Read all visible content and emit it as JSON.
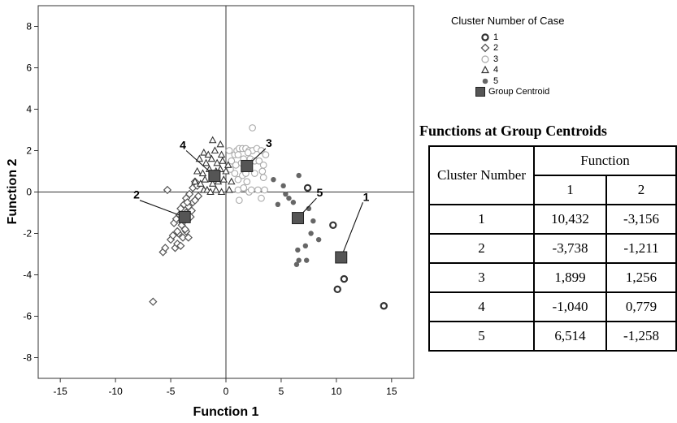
{
  "chart_data": {
    "type": "scatter",
    "xlabel": "Function 1",
    "ylabel": "Function 2",
    "xlim": [
      -17,
      17
    ],
    "ylim": [
      -9,
      9
    ],
    "x_ticks": [
      -15,
      -10,
      -5,
      0,
      5,
      10,
      15
    ],
    "y_ticks": [
      -8,
      -6,
      -4,
      -2,
      0,
      2,
      4,
      6,
      8
    ],
    "grid": false,
    "reference_lines": [
      {
        "axis": "x",
        "value": 0
      },
      {
        "axis": "y",
        "value": 0
      }
    ],
    "legend": {
      "title": "Cluster Number of Case",
      "placement": "top-right-outside",
      "entries": [
        {
          "label": "1",
          "marker": "circle-bold",
          "color": "#333333"
        },
        {
          "label": "2",
          "marker": "diamond",
          "color": "#555555"
        },
        {
          "label": "3",
          "marker": "circle-light",
          "color": "#aaaaaa"
        },
        {
          "label": "4",
          "marker": "triangle",
          "color": "#333333"
        },
        {
          "label": "5",
          "marker": "dot",
          "color": "#666666"
        },
        {
          "label": "Group Centroid",
          "marker": "square",
          "color": "#555555"
        }
      ]
    },
    "series": [
      {
        "name": "1",
        "points": [
          [
            9.7,
            -1.6
          ],
          [
            10.1,
            -4.7
          ],
          [
            10.7,
            -4.2
          ],
          [
            7.4,
            0.2
          ],
          [
            14.3,
            -5.5
          ]
        ]
      },
      {
        "name": "2",
        "points": [
          [
            -5.3,
            0.1
          ],
          [
            -6.6,
            -5.3
          ],
          [
            -5.7,
            -2.9
          ],
          [
            -5.5,
            -2.7
          ],
          [
            -5.0,
            -2.3
          ],
          [
            -4.8,
            -2.1
          ],
          [
            -4.6,
            -2.7
          ],
          [
            -4.4,
            -2.5
          ],
          [
            -4.3,
            -2.0
          ],
          [
            -4.1,
            -2.6
          ],
          [
            -3.9,
            -2.2
          ],
          [
            -3.6,
            -1.9
          ],
          [
            -3.4,
            -2.2
          ],
          [
            -4.7,
            -1.5
          ],
          [
            -4.5,
            -1.3
          ],
          [
            -4.2,
            -1.1
          ],
          [
            -4.0,
            -1.6
          ],
          [
            -3.8,
            -1.4
          ],
          [
            -3.6,
            -1.0
          ],
          [
            -3.4,
            -0.7
          ],
          [
            -3.2,
            -1.2
          ],
          [
            -3.0,
            -0.5
          ],
          [
            -2.8,
            -0.4
          ],
          [
            -3.8,
            -0.6
          ],
          [
            -3.6,
            -0.3
          ],
          [
            -3.3,
            -0.1
          ],
          [
            -3.0,
            0.2
          ],
          [
            -2.8,
            0.5
          ],
          [
            -2.6,
            0.3
          ],
          [
            -3.1,
            -0.9
          ],
          [
            -4.1,
            -0.8
          ],
          [
            -3.5,
            -0.5
          ],
          [
            -2.5,
            -0.2
          ],
          [
            -3.7,
            -1.8
          ],
          [
            -4.4,
            -1.9
          ]
        ]
      },
      {
        "name": "3",
        "points": [
          [
            2.4,
            3.1
          ],
          [
            0.3,
            2.0
          ],
          [
            0.8,
            1.8
          ],
          [
            1.0,
            2.0
          ],
          [
            1.2,
            2.1
          ],
          [
            1.5,
            2.1
          ],
          [
            1.8,
            2.1
          ],
          [
            2.1,
            2.0
          ],
          [
            2.4,
            2.0
          ],
          [
            2.8,
            2.1
          ],
          [
            3.2,
            2.0
          ],
          [
            3.6,
            1.8
          ],
          [
            0.5,
            1.5
          ],
          [
            0.9,
            1.3
          ],
          [
            1.4,
            1.4
          ],
          [
            1.6,
            1.6
          ],
          [
            2.2,
            1.6
          ],
          [
            2.6,
            1.5
          ],
          [
            3.0,
            1.5
          ],
          [
            3.4,
            1.3
          ],
          [
            0.8,
            0.9
          ],
          [
            1.1,
            0.6
          ],
          [
            1.5,
            0.8
          ],
          [
            1.9,
            0.5
          ],
          [
            2.6,
            0.9
          ],
          [
            3.3,
            1.0
          ],
          [
            3.4,
            0.7
          ],
          [
            1.1,
            0.1
          ],
          [
            1.6,
            0.2
          ],
          [
            2.1,
            0.0
          ],
          [
            2.3,
            0.1
          ],
          [
            2.9,
            0.1
          ],
          [
            3.5,
            0.1
          ],
          [
            1.2,
            -0.4
          ],
          [
            3.2,
            -0.3
          ],
          [
            1.8,
            0.9
          ],
          [
            0.4,
            1.1
          ],
          [
            1.1,
            1.8
          ],
          [
            2.0,
            1.9
          ]
        ]
      },
      {
        "name": "4",
        "points": [
          [
            -1.2,
            2.5
          ],
          [
            -0.5,
            2.3
          ],
          [
            -2.0,
            1.9
          ],
          [
            -1.6,
            1.8
          ],
          [
            -1.0,
            2.0
          ],
          [
            -0.4,
            1.8
          ],
          [
            -2.4,
            1.6
          ],
          [
            -1.8,
            1.4
          ],
          [
            -1.3,
            1.6
          ],
          [
            -0.8,
            1.4
          ],
          [
            -0.3,
            1.5
          ],
          [
            0.2,
            1.3
          ],
          [
            -2.6,
            1.0
          ],
          [
            -2.1,
            0.9
          ],
          [
            -1.5,
            1.1
          ],
          [
            -0.9,
            1.0
          ],
          [
            -0.5,
            1.1
          ],
          [
            0.0,
            1.0
          ],
          [
            -2.8,
            0.5
          ],
          [
            -2.3,
            0.4
          ],
          [
            -1.9,
            0.6
          ],
          [
            -1.2,
            0.4
          ],
          [
            -0.7,
            0.5
          ],
          [
            -0.2,
            0.6
          ],
          [
            -2.0,
            0.1
          ],
          [
            -1.7,
            0.1
          ],
          [
            -1.4,
            0.0
          ],
          [
            -0.9,
            0.1
          ],
          [
            -0.4,
            0.0
          ],
          [
            0.3,
            0.1
          ],
          [
            0.5,
            0.5
          ],
          [
            -1.1,
            0.8
          ]
        ]
      },
      {
        "name": "5",
        "points": [
          [
            4.3,
            0.6
          ],
          [
            5.2,
            0.3
          ],
          [
            6.6,
            0.8
          ],
          [
            5.7,
            -0.3
          ],
          [
            4.7,
            -0.6
          ],
          [
            6.1,
            -0.5
          ],
          [
            7.5,
            -0.8
          ],
          [
            7.9,
            -1.4
          ],
          [
            7.7,
            -2.0
          ],
          [
            7.2,
            -2.6
          ],
          [
            6.5,
            -2.8
          ],
          [
            6.6,
            -3.3
          ],
          [
            6.4,
            -3.5
          ],
          [
            7.3,
            -3.3
          ],
          [
            8.4,
            -2.3
          ],
          [
            5.4,
            -0.1
          ]
        ]
      }
    ],
    "centroids": [
      {
        "cluster": "1",
        "x": 10.432,
        "y": -3.156,
        "label_point": [
          12.4,
          -0.5
        ]
      },
      {
        "cluster": "2",
        "x": -3.738,
        "y": -1.211,
        "label_point": [
          -7.8,
          -0.4
        ]
      },
      {
        "cluster": "3",
        "x": 1.899,
        "y": 1.256,
        "label_point": [
          3.6,
          2.1
        ]
      },
      {
        "cluster": "4",
        "x": -1.04,
        "y": 0.779,
        "label_point": [
          -3.6,
          2.0
        ]
      },
      {
        "cluster": "5",
        "x": 6.514,
        "y": -1.258,
        "label_point": [
          8.2,
          -0.3
        ]
      }
    ]
  },
  "legend": {
    "title": "Cluster Number of Case",
    "items": [
      "1",
      "2",
      "3",
      "4",
      "5",
      "Group Centroid"
    ]
  },
  "table": {
    "title": "Functions at Group Centroids",
    "row_header": "Cluster Number",
    "group_header": "Function",
    "columns": [
      "1",
      "2"
    ],
    "rows": [
      {
        "cluster": "1",
        "f1": "10,432",
        "f2": "-3,156"
      },
      {
        "cluster": "2",
        "f1": "-3,738",
        "f2": "-1,211"
      },
      {
        "cluster": "3",
        "f1": "1,899",
        "f2": "1,256"
      },
      {
        "cluster": "4",
        "f1": "-1,040",
        "f2": "0,779"
      },
      {
        "cluster": "5",
        "f1": "6,514",
        "f2": "-1,258"
      }
    ]
  }
}
